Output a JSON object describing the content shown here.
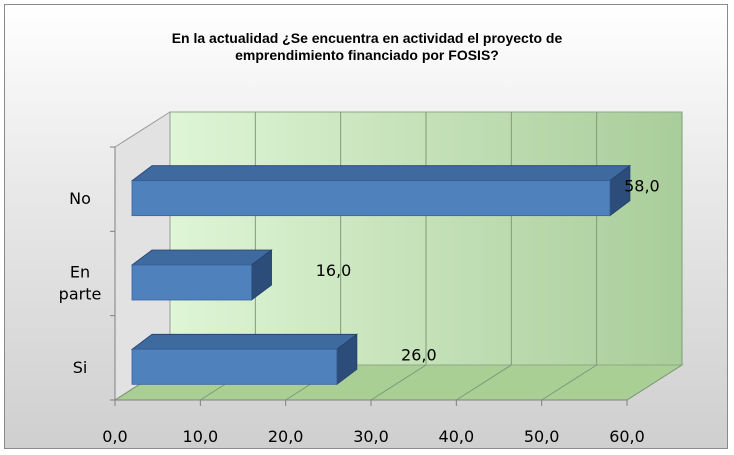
{
  "chart_data": {
    "type": "bar",
    "orientation": "horizontal",
    "style": "3d",
    "title": "En la actualidad ¿Se encuentra en actividad el proyecto de\nemprendimiento financiado por FOSIS?",
    "categories": [
      "No",
      "En parte",
      "Si"
    ],
    "category_display": [
      [
        "No"
      ],
      [
        "En",
        "parte"
      ],
      [
        "Si"
      ]
    ],
    "values": [
      58.0,
      16.0,
      26.0
    ],
    "data_labels": [
      "58,0",
      "16,0",
      "26,0"
    ],
    "xlim": [
      0,
      60
    ],
    "x_ticks": [
      "0,0",
      "10,0",
      "20,0",
      "30,0",
      "40,0",
      "50,0",
      "60,0"
    ],
    "grid": true,
    "legend": "none",
    "colors": {
      "bar_front": "#4f81bd",
      "bar_top": "#3e6aa0",
      "bar_side": "#2c4d7a",
      "wall_light": "#dff5d6",
      "wall_dark": "#a9cd9a",
      "floor": "#a9cf95"
    }
  }
}
